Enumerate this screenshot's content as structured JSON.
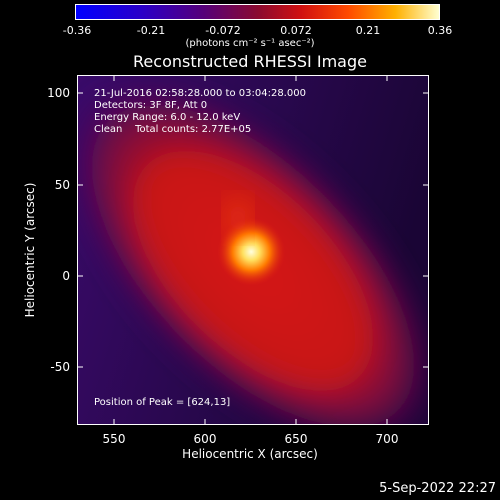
{
  "colorbar": {
    "ticks": [
      "-0.36",
      "-0.21",
      "-0.072",
      "0.072",
      "0.21",
      "0.36"
    ],
    "unit_label": "(photons cm⁻² s⁻¹ asec⁻²)"
  },
  "title": "Reconstructed RHESSI Image",
  "info": {
    "time": "21-Jul-2016 02:58:28.000 to 03:04:28.000",
    "detectors": "Detectors: 3F 8F, Att 0",
    "energy": "Energy Range: 6.0 - 12.0 keV",
    "clean": "Clean    Total counts: 2.77E+05",
    "peak": "Position of Peak = [624,13]"
  },
  "chart_data": {
    "type": "heatmap",
    "title": "Reconstructed RHESSI Image",
    "xlabel": "Heliocentric X (arcsec)",
    "ylabel": "Heliocentric Y (arcsec)",
    "xlim": [
      528,
      722
    ],
    "ylim": [
      -82,
      110
    ],
    "x_ticks": [
      "550",
      "600",
      "650",
      "700"
    ],
    "y_ticks": [
      "100",
      "50",
      "0",
      "-50"
    ],
    "colorbar_range": [
      -0.36,
      0.36
    ],
    "peak_position": [
      624,
      13
    ]
  },
  "footer": {
    "date": "5-Sep-2022 22:27"
  },
  "colors": {
    "background": "#000000",
    "text": "#ffffff"
  }
}
